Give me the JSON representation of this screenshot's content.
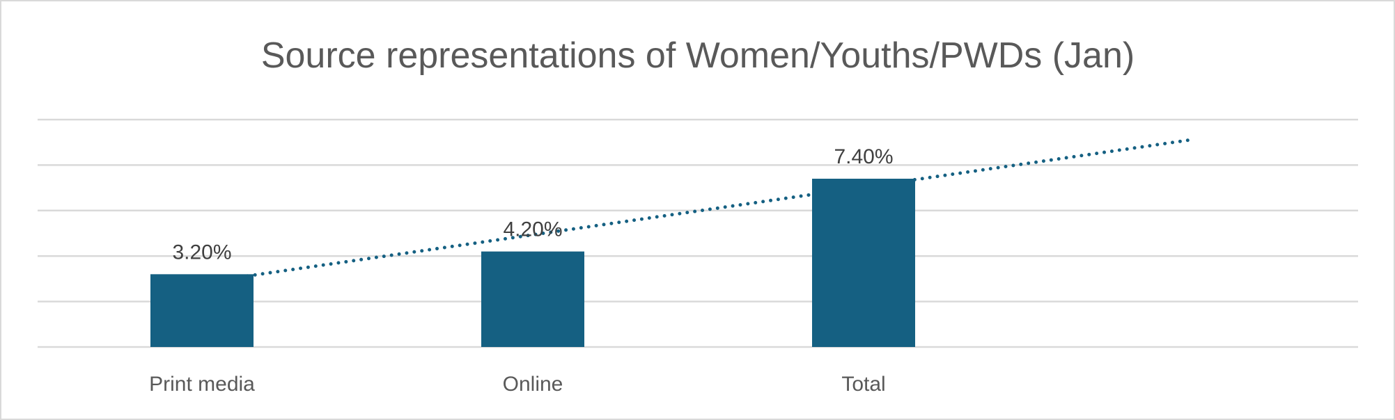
{
  "chart_data": {
    "type": "bar",
    "title": "Source representations of Women/Youths/PWDs (Jan)",
    "xlabel": "",
    "ylabel": "",
    "categories": [
      "Print media",
      "Online",
      "Total"
    ],
    "values": [
      3.2,
      4.2,
      7.4
    ],
    "data_labels": [
      "3.20%",
      "4.20%",
      "7.40%"
    ],
    "ylim": [
      0,
      10
    ],
    "y_gridline_step": 2,
    "y_tick_labels_shown": false,
    "grid": true,
    "legend": "none",
    "trendline": {
      "type": "linear",
      "style": "dotted",
      "forward_periods": 1
    },
    "colors": {
      "bar": "#156082",
      "trendline": "#156082",
      "grid": "#d9d9d9",
      "title": "#595959",
      "label": "#404040"
    }
  }
}
